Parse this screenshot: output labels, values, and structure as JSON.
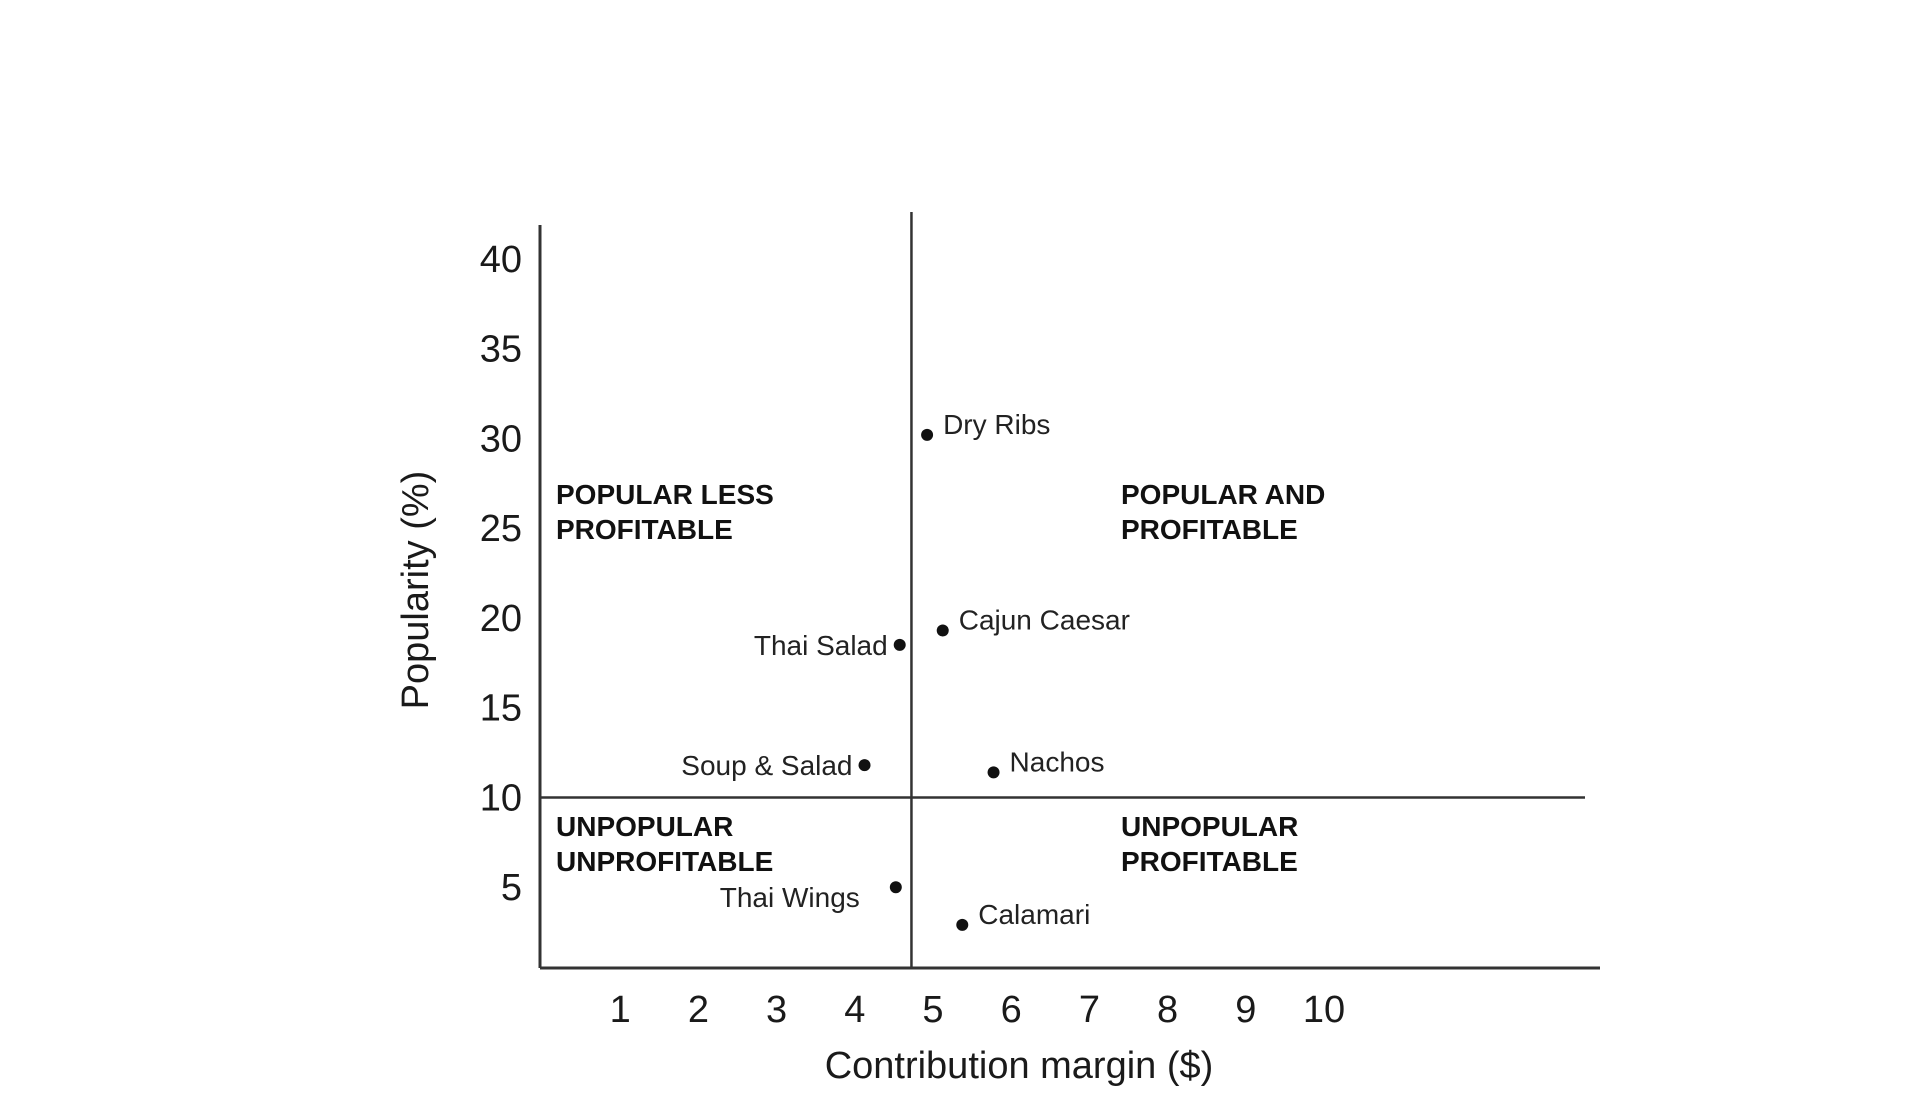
{
  "chart_data": {
    "type": "scatter",
    "xlabel": "Contribution margin ($)",
    "ylabel": "Popularity (%)",
    "x_ticks": [
      1,
      2,
      3,
      4,
      5,
      6,
      7,
      8,
      9,
      10
    ],
    "y_ticks": [
      5,
      10,
      15,
      20,
      25,
      30,
      35,
      40
    ],
    "xlim": [
      0,
      13.5
    ],
    "ylim": [
      0.5,
      41
    ],
    "grid": false,
    "dividers": {
      "x": 4.75,
      "y": 10
    },
    "points": [
      {
        "label": "Dry Ribs",
        "x": 4.95,
        "y": 30.2
      },
      {
        "label": "Cajun Caesar",
        "x": 5.15,
        "y": 19.3
      },
      {
        "label": "Thai Salad",
        "x": 4.6,
        "y": 18.5
      },
      {
        "label": "Soup & Salad",
        "x": 4.15,
        "y": 11.8
      },
      {
        "label": "Nachos",
        "x": 5.8,
        "y": 11.4
      },
      {
        "label": "Thai Wings",
        "x": 4.55,
        "y": 5.0
      },
      {
        "label": "Calamari",
        "x": 5.4,
        "y": 2.9
      }
    ],
    "quadrants": [
      {
        "id": "top-left",
        "lines": [
          "POPULAR LESS",
          "PROFITABLE"
        ]
      },
      {
        "id": "top-right",
        "lines": [
          "POPULAR AND",
          "PROFITABLE"
        ]
      },
      {
        "id": "bottom-left",
        "lines": [
          "UNPOPULAR",
          "UNPROFITABLE"
        ]
      },
      {
        "id": "bottom-right",
        "lines": [
          "UNPOPULAR",
          "PROFITABLE"
        ]
      }
    ]
  }
}
